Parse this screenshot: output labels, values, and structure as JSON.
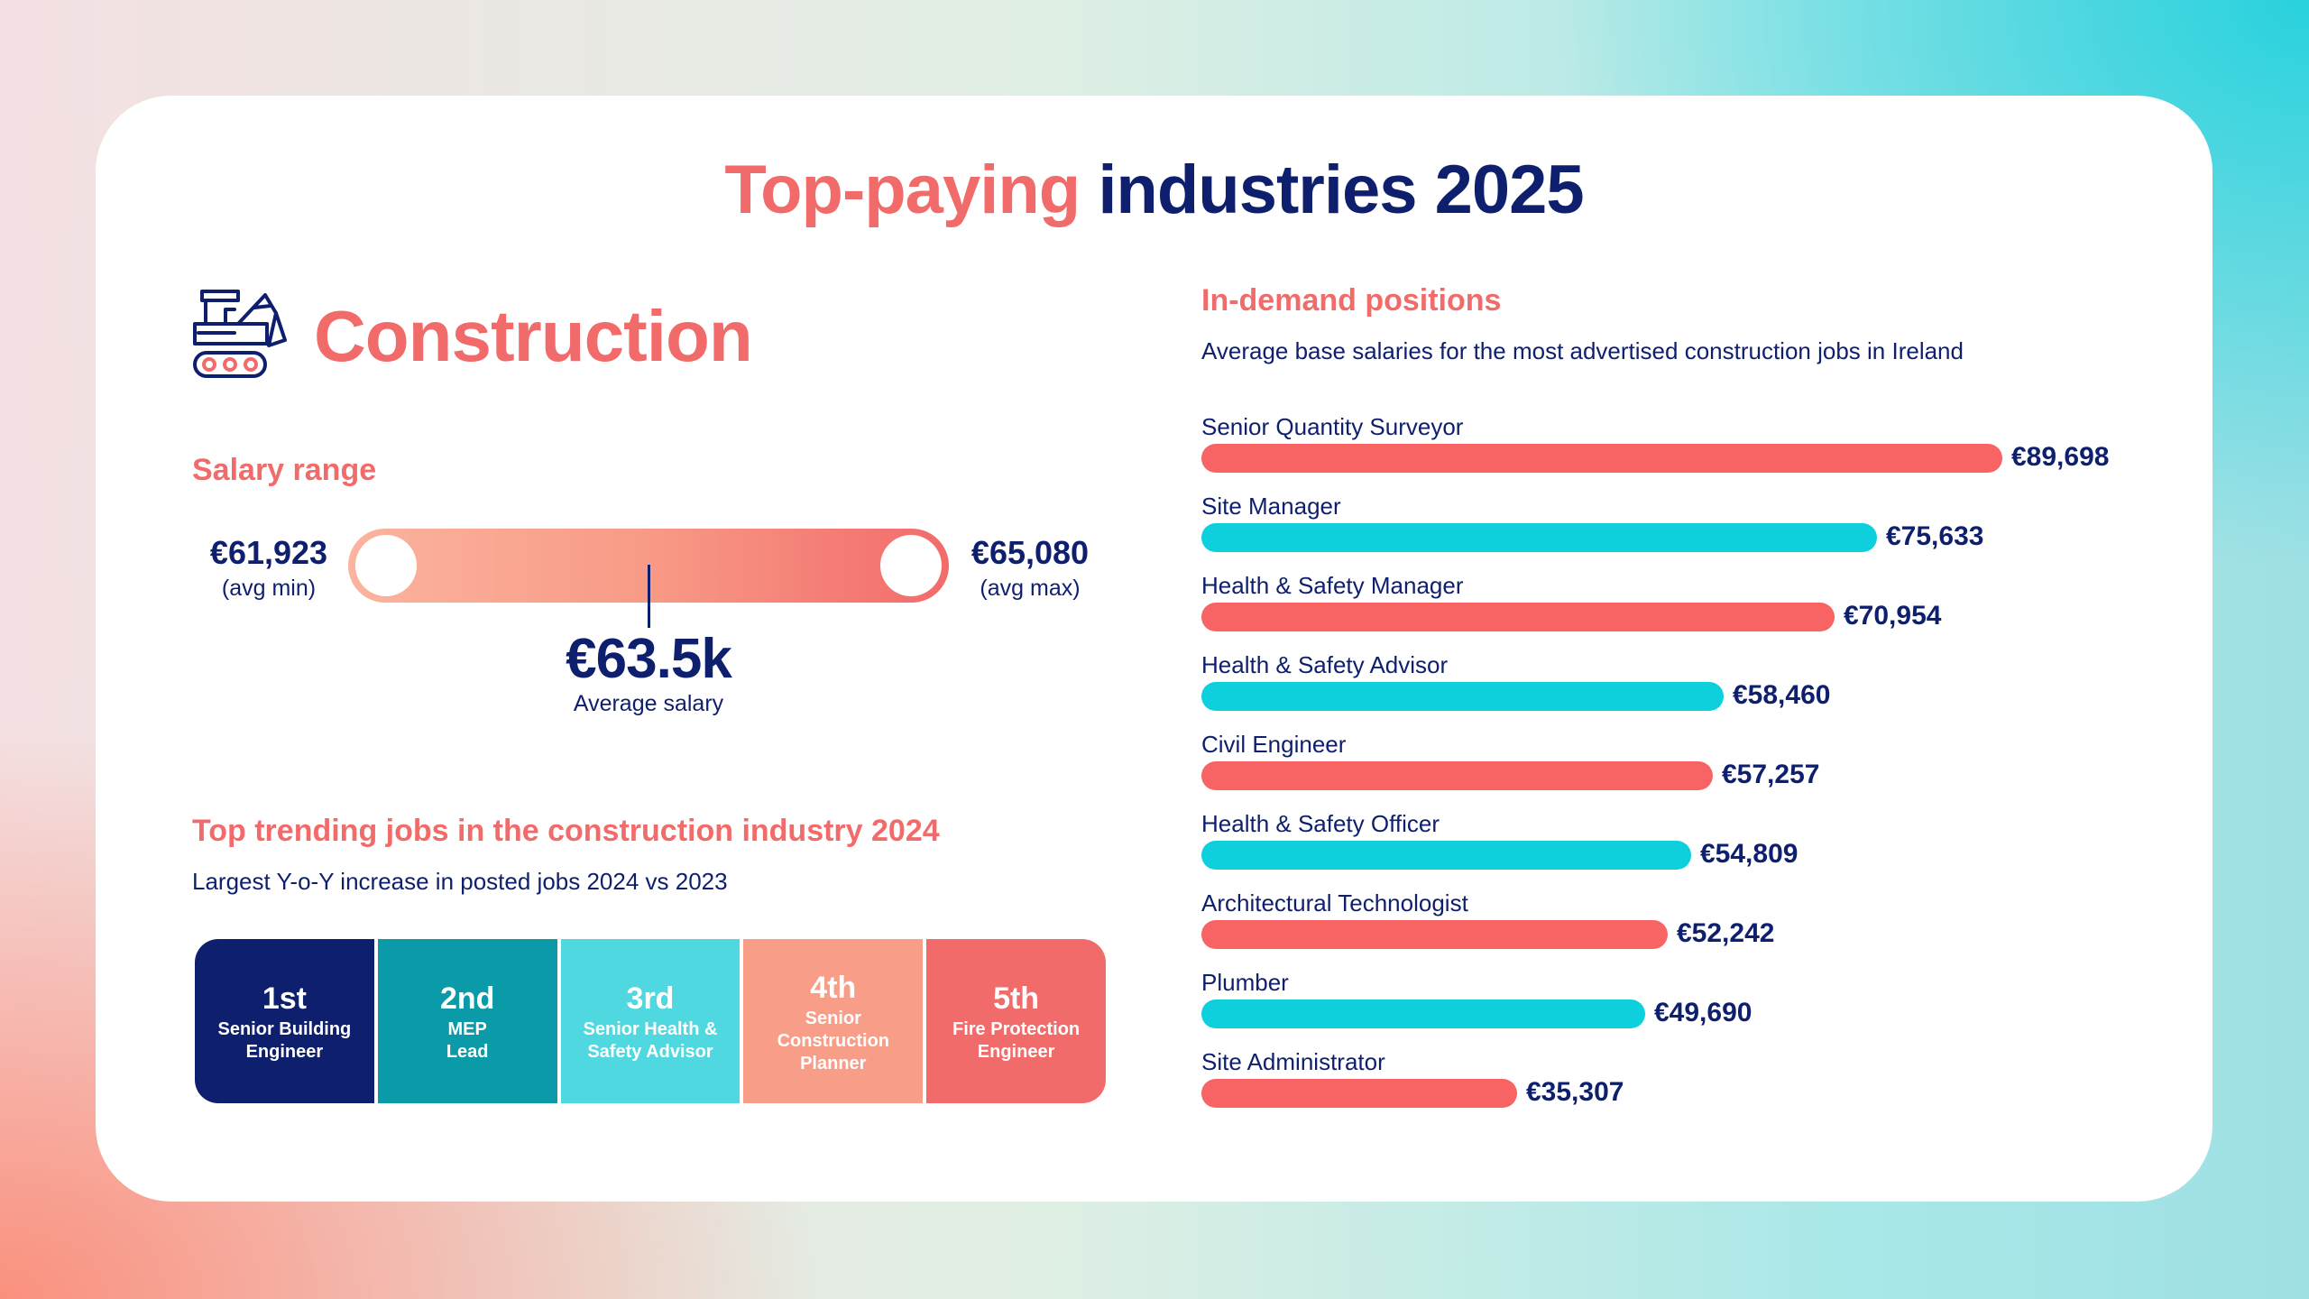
{
  "title": {
    "part1": "Top-paying",
    "part2": "industries 2025"
  },
  "industry": {
    "name": "Construction",
    "icon": "excavator-icon"
  },
  "salary_range": {
    "heading": "Salary range",
    "min_value": "€61,923",
    "min_label": "(avg min)",
    "max_value": "€65,080",
    "max_label": "(avg max)",
    "avg_value": "€63.5k",
    "avg_label": "Average salary"
  },
  "trending": {
    "heading": "Top trending jobs in the construction industry 2024",
    "subtitle": "Largest Y-o-Y increase in posted jobs 2024 vs 2023",
    "items": [
      {
        "rank": "1st",
        "title": "Senior Building Engineer",
        "color": "#0e1f6e"
      },
      {
        "rank": "2nd",
        "title": "MEP Lead",
        "color": "#0b9aa8"
      },
      {
        "rank": "3rd",
        "title": "Senior Health & Safety Advisor",
        "color": "#4fd8e0"
      },
      {
        "rank": "4th",
        "title": "Senior Construction Planner",
        "color": "#f89d88"
      },
      {
        "rank": "5th",
        "title": "Fire Protection Engineer",
        "color": "#f26b6b"
      }
    ]
  },
  "positions": {
    "heading": "In-demand positions",
    "subtitle": "Average base salaries for the most advertised construction jobs in Ireland"
  },
  "chart_data": {
    "type": "bar",
    "orientation": "horizontal",
    "categories": [
      "Senior Quantity Surveyor",
      "Site Manager",
      "Health & Safety Manager",
      "Health & Safety Advisor",
      "Civil Engineer",
      "Health & Safety Officer",
      "Architectural Technologist",
      "Plumber",
      "Site Administrator"
    ],
    "values": [
      89698,
      75633,
      70954,
      58460,
      57257,
      54809,
      52242,
      49690,
      35307
    ],
    "value_labels": [
      "€89,698",
      "€75,633",
      "€70,954",
      "€58,460",
      "€57,257",
      "€54,809",
      "€52,242",
      "€49,690",
      "€35,307"
    ],
    "colors": [
      "#f76463",
      "#0dd0dc"
    ],
    "xlim": [
      0,
      89698
    ],
    "grid": false,
    "legend": "none"
  }
}
